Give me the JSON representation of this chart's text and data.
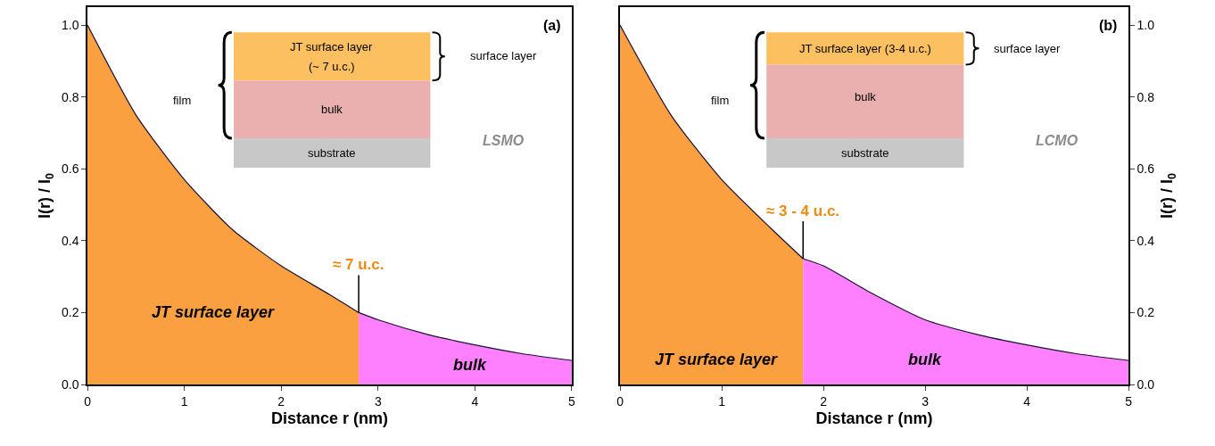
{
  "chart_data": [
    {
      "type": "area",
      "xlabel": "Distance r (nm)",
      "ylabel": "I(r) / I$_{0}$",
      "xlim": [
        0,
        5
      ],
      "ylim": [
        0,
        1.05
      ],
      "xticks": [
        0,
        1,
        2,
        3,
        4,
        5
      ],
      "yticks": [
        {
          "value": 0,
          "label": "0.0"
        },
        {
          "value": 0.2,
          "label": "0.2"
        },
        {
          "value": 0.4,
          "label": "0.4"
        },
        {
          "value": 0.6,
          "label": "0.6"
        },
        {
          "value": 0.8,
          "label": "0.8"
        },
        {
          "value": 1.0,
          "label": "1.0"
        }
      ],
      "legend": false,
      "series": [
        {
          "name": "JT surface layer",
          "color": "#fba040",
          "x": [
            0,
            0.5,
            1,
            1.5,
            2,
            2.5,
            2.8
          ],
          "values": [
            1.0,
            0.75,
            0.57,
            0.43,
            0.33,
            0.25,
            0.2
          ]
        },
        {
          "name": "bulk",
          "color": "#ff80ff",
          "x": [
            2.8,
            3,
            3.5,
            4,
            4.5,
            5
          ],
          "values": [
            0.2,
            0.18,
            0.14,
            0.11,
            0.085,
            0.067
          ]
        }
      ],
      "annotations": [
        "(a)",
        "LSMO",
        {
          "text": "≈ 7 u.c.",
          "x": 2.8,
          "y": 0.2
        },
        "JT surface layer",
        "(~ 7 u.c.)",
        "surface layer",
        "film",
        "bulk",
        "substrate"
      ]
    },
    {
      "type": "area",
      "xlabel": "Distance r (nm)",
      "ylabel": "I(r) / I$_{0}$",
      "xlim": [
        0,
        5
      ],
      "ylim": [
        0,
        1.05
      ],
      "xticks": [
        0,
        1,
        2,
        3,
        4,
        5
      ],
      "yticks": [
        {
          "value": 0,
          "label": "0.0"
        },
        {
          "value": 0.2,
          "label": "0.2"
        },
        {
          "value": 0.4,
          "label": "0.4"
        },
        {
          "value": 0.6,
          "label": "0.6"
        },
        {
          "value": 0.8,
          "label": "0.8"
        },
        {
          "value": 1.0,
          "label": "1.0"
        }
      ],
      "legend": false,
      "series": [
        {
          "name": "JT surface layer",
          "color": "#fba040",
          "x": [
            0,
            0.5,
            1,
            1.5,
            1.8
          ],
          "values": [
            1.0,
            0.75,
            0.57,
            0.43,
            0.35
          ]
        },
        {
          "name": "bulk",
          "color": "#ff80ff",
          "x": [
            1.8,
            2,
            2.5,
            3,
            3.5,
            4,
            4.5,
            5
          ],
          "values": [
            0.35,
            0.33,
            0.25,
            0.18,
            0.14,
            0.11,
            0.085,
            0.067
          ]
        }
      ],
      "annotations": [
        "(b)",
        "LCMO",
        {
          "text": "≈ 3 - 4 u.c.",
          "x": 1.8,
          "y": 0.35
        },
        "JT surface layer (3-4 u.c.)",
        "surface layer",
        "film",
        "bulk",
        "substrate"
      ]
    }
  ]
}
